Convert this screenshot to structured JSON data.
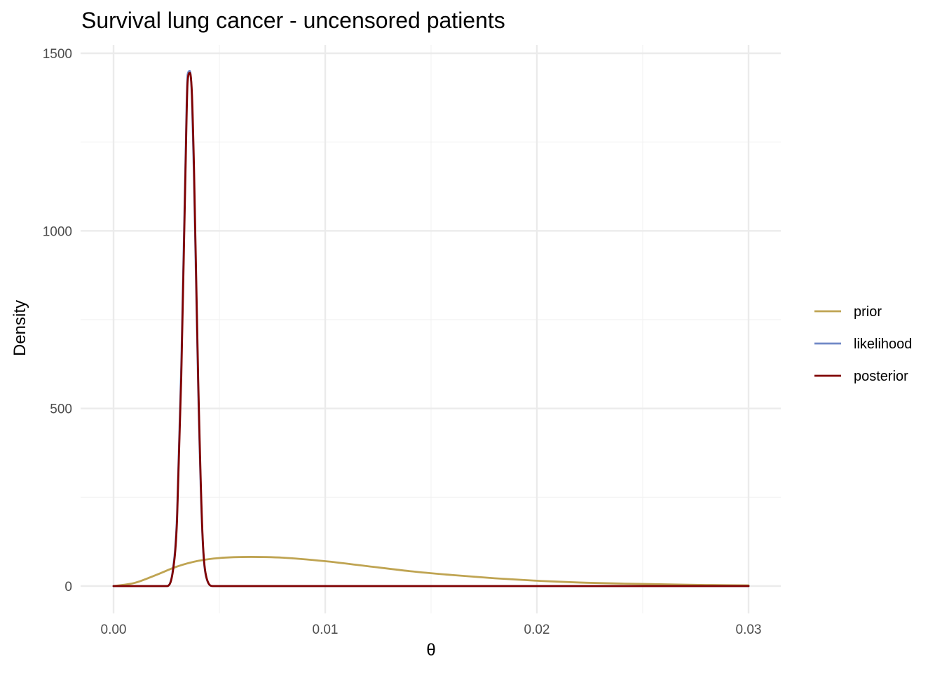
{
  "chart_data": {
    "type": "line",
    "title": "Survival lung cancer - uncensored patients",
    "xlabel": "θ",
    "ylabel": "Density",
    "xlim": [
      0,
      0.03
    ],
    "ylim": [
      0,
      1500
    ],
    "x_ticks": [
      {
        "value": 0.0,
        "label": "0.00"
      },
      {
        "value": 0.01,
        "label": "0.01"
      },
      {
        "value": 0.02,
        "label": "0.02"
      },
      {
        "value": 0.03,
        "label": "0.03"
      }
    ],
    "y_ticks": [
      {
        "value": 0,
        "label": "0"
      },
      {
        "value": 500,
        "label": "500"
      },
      {
        "value": 1000,
        "label": "1000"
      },
      {
        "value": 1500,
        "label": "1500"
      }
    ],
    "grid": true,
    "legend_position": "right",
    "series": [
      {
        "name": "prior",
        "color": "#bfa452",
        "x": [
          0.0,
          0.001,
          0.002,
          0.003,
          0.004,
          0.005,
          0.0065,
          0.008,
          0.01,
          0.012,
          0.014,
          0.016,
          0.018,
          0.02,
          0.022,
          0.024,
          0.026,
          0.028,
          0.03
        ],
        "y": [
          0,
          9,
          31,
          55,
          71,
          79,
          82,
          80,
          70,
          56,
          42,
          31,
          22,
          15,
          10,
          7,
          5,
          3,
          2
        ]
      },
      {
        "name": "likelihood",
        "color": "#7089c6",
        "x": [
          0.0,
          0.0025,
          0.0028,
          0.003,
          0.0032,
          0.0034,
          0.0035,
          0.0036,
          0.0037,
          0.0038,
          0.004,
          0.0042,
          0.0044,
          0.0047,
          0.03
        ],
        "y": [
          0,
          0,
          45,
          200,
          620,
          1200,
          1440,
          1450,
          1380,
          1150,
          550,
          140,
          20,
          0,
          0
        ]
      },
      {
        "name": "posterior",
        "color": "#800000",
        "x": [
          0.0,
          0.0025,
          0.0028,
          0.003,
          0.0032,
          0.0034,
          0.0035,
          0.0036,
          0.0037,
          0.0038,
          0.004,
          0.0042,
          0.0044,
          0.0047,
          0.03
        ],
        "y": [
          0,
          0,
          40,
          185,
          590,
          1170,
          1420,
          1445,
          1390,
          1180,
          580,
          150,
          22,
          0,
          0
        ]
      }
    ]
  }
}
